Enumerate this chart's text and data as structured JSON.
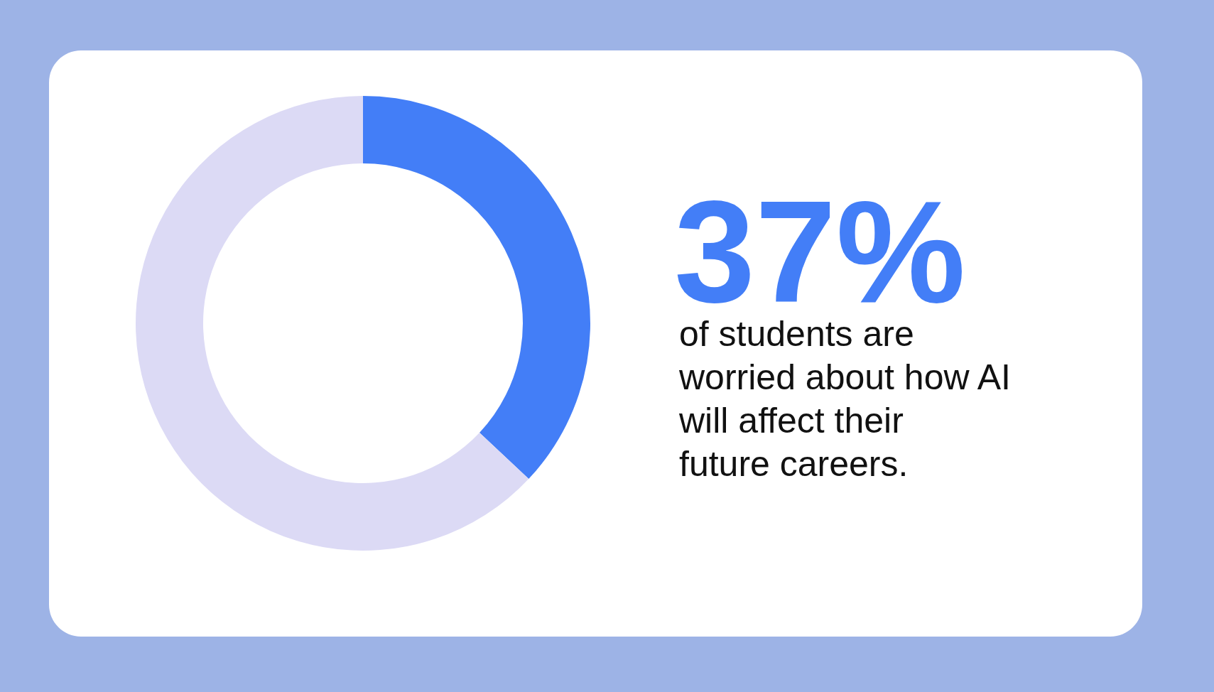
{
  "chart_data": {
    "type": "donut",
    "categories": [
      null,
      null
    ],
    "values": [
      37,
      63
    ],
    "colors": [
      "#437ef7",
      "#dcdaf5"
    ],
    "value_labels": [
      "37%",
      null
    ],
    "annotations": [
      "of students are worried about how AI will affect their future careers."
    ]
  }
}
